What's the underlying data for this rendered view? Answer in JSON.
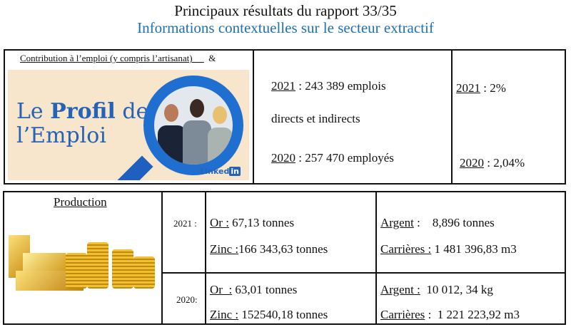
{
  "header": {
    "title": "Principaux résultats du rapport 33/35",
    "subtitle": "Informations contextuelles sur le secteur extractif"
  },
  "employment": {
    "heading": "Contribution à l’emploi (y compris l’artisanat)",
    "heading_suffix": "&",
    "image": {
      "line1a": "Le ",
      "line1b": "Profil",
      "line1c": " de",
      "line2": "l’Emploi",
      "brand": "Linked",
      "brand_in": "in"
    },
    "y2021_label": "2021",
    "y2021_value": " : 243 389 emplois",
    "y2021_value2": "directs et indirects",
    "y2020_label": "2020",
    "y2020_value": " : 257 470 employés",
    "pct2021_label": "2021",
    "pct2021_value": " : 2%",
    "pct2020_label": "2020",
    "pct2020_value": " : 2,04%"
  },
  "production": {
    "heading": "Production",
    "rows": [
      {
        "year": "2021 :",
        "or_label": "Or :",
        "or_value": " 67,13 tonnes",
        "zinc_label": "Zinc :",
        "zinc_value": "166 343,63 tonnes",
        "argent_label": "Argent",
        "argent_value": " :    8,896 tonnes",
        "carr_label": "Carrières :",
        "carr_value": " 1 481 396,83 m3"
      },
      {
        "year": "2020:",
        "or_label": "Or  :",
        "or_value": " 63,01 tonnes",
        "zinc_label": "Zinc :",
        "zinc_value": " 152540,18 tonnes",
        "argent_label": "Argent :",
        "argent_value": "  10 012, 34 kg",
        "carr_label": "Carrières",
        "carr_value": " :  1 221 223,92 m3"
      }
    ]
  },
  "colors": {
    "accent": "#1f6fb5",
    "gold": "#e0a820"
  }
}
